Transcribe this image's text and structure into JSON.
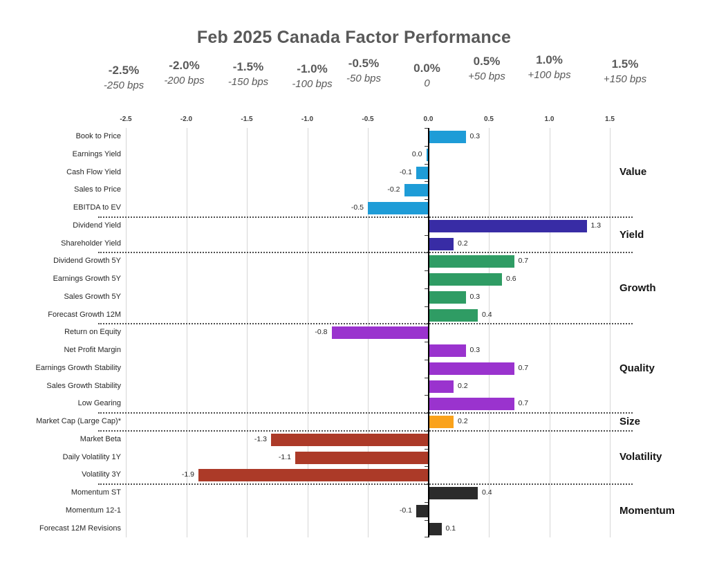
{
  "title": "Feb 2025 Canada Factor Performance",
  "scale_header": [
    {
      "pct": "-2.5%",
      "bps": "-250 bps",
      "value": -2.5
    },
    {
      "pct": "-2.0%",
      "bps": "-200 bps",
      "value": -2.0
    },
    {
      "pct": "-1.5%",
      "bps": "-150 bps",
      "value": -1.5
    },
    {
      "pct": "-1.0%",
      "bps": "-100 bps",
      "value": -1.0
    },
    {
      "pct": "-0.5%",
      "bps": "-50 bps",
      "value": -0.5
    },
    {
      "pct": "0.0%",
      "bps": "0",
      "value": 0.0
    },
    {
      "pct": "0.5%",
      "bps": "+50 bps",
      "value": 0.5
    },
    {
      "pct": "1.0%",
      "bps": "+100 bps",
      "value": 1.0
    },
    {
      "pct": "1.5%",
      "bps": "+150 bps",
      "value": 1.5
    }
  ],
  "chart_data": {
    "type": "bar",
    "orientation": "horizontal",
    "title": "Feb 2025 Canada Factor Performance",
    "xlim": [
      -2.5,
      1.5
    ],
    "grid": "vertical-solid-light-gray",
    "zero_axis_color": "#000000",
    "axis_ticks": [
      {
        "label": "-2.5",
        "value": -2.5
      },
      {
        "label": "-2.0",
        "value": -2.0
      },
      {
        "label": "-1.5",
        "value": -1.5
      },
      {
        "label": "-1.0",
        "value": -1.0
      },
      {
        "label": "-0.5",
        "value": -0.5
      },
      {
        "label": "0.0",
        "value": 0.0
      },
      {
        "label": "0.5",
        "value": 0.5
      },
      {
        "label": "1.0",
        "value": 1.0
      },
      {
        "label": "1.5",
        "value": 1.5
      }
    ],
    "groups": [
      {
        "name": "Value",
        "color": "#1e9cd7",
        "items": [
          {
            "label": "Book to Price",
            "value": 0.3
          },
          {
            "label": "Earnings Yield",
            "value": 0.0
          },
          {
            "label": "Cash Flow Yield",
            "value": -0.1
          },
          {
            "label": "Sales to Price",
            "value": -0.2
          },
          {
            "label": "EBITDA to EV",
            "value": -0.5
          }
        ]
      },
      {
        "name": "Yield",
        "color": "#382ca5",
        "items": [
          {
            "label": "Dividend Yield",
            "value": 1.3
          },
          {
            "label": "Shareholder Yield",
            "value": 0.2
          }
        ]
      },
      {
        "name": "Growth",
        "color": "#2f9c64",
        "items": [
          {
            "label": "Dividend Growth 5Y",
            "value": 0.7
          },
          {
            "label": "Earnings Growth 5Y",
            "value": 0.6
          },
          {
            "label": "Sales Growth 5Y",
            "value": 0.3
          },
          {
            "label": "Forecast Growth 12M",
            "value": 0.4
          }
        ]
      },
      {
        "name": "Quality",
        "color": "#9a33ce",
        "items": [
          {
            "label": "Return on Equity",
            "value": -0.8
          },
          {
            "label": "Net Profit Margin",
            "value": 0.3
          },
          {
            "label": "Earnings Growth Stability",
            "value": 0.7
          },
          {
            "label": "Sales Growth Stability",
            "value": 0.2
          },
          {
            "label": "Low Gearing",
            "value": 0.7
          }
        ]
      },
      {
        "name": "Size",
        "color": "#faa21b",
        "items": [
          {
            "label": "Market Cap (Large Cap)*",
            "value": 0.2
          }
        ]
      },
      {
        "name": "Volatility",
        "color": "#ac3a28",
        "items": [
          {
            "label": "Market Beta",
            "value": -1.3
          },
          {
            "label": "Daily Volatility 1Y",
            "value": -1.1
          },
          {
            "label": "Volatility 3Y",
            "value": -1.9
          }
        ]
      },
      {
        "name": "Momentum",
        "color": "#2b2b2b",
        "items": [
          {
            "label": "Momentum ST",
            "value": 0.4
          },
          {
            "label": "Momentum 12-1",
            "value": -0.1
          },
          {
            "label": "Forecast 12M Revisions",
            "value": 0.1
          }
        ]
      }
    ]
  },
  "colors": {
    "title_text": "#595959",
    "scale_text": "#595959",
    "tick_text": "#3f3f3f",
    "label_text": "#262626",
    "gridline": "#d6d6d6",
    "zero_axis": "#000000",
    "separator": "#4d4d4d"
  }
}
